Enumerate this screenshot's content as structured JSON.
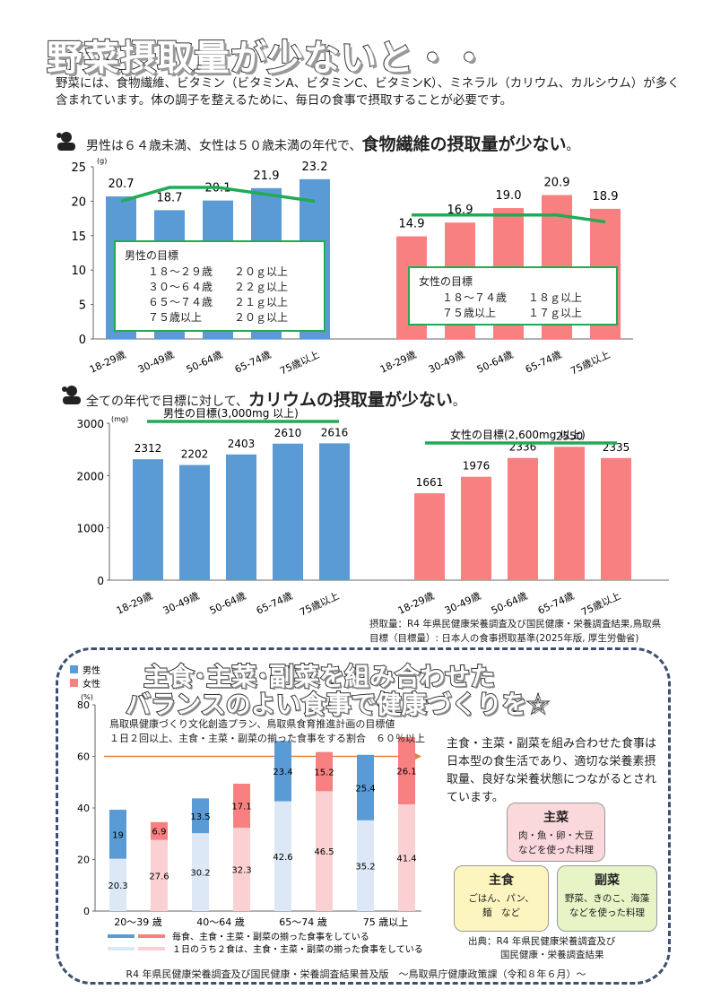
{
  "title": "野菜摂取量が少ないと・・",
  "intro": "野菜には、食物繊維、ビタミン（ビタミンA、ビタミンC、ビタミンK）、ミネラル（カリウム、カルシウム）が多く含まれています。体の調子を整えるために、毎日の食事で摂取することが必要です。",
  "section1": {
    "lead": "男性は６４歳未満、女性は５０歳未満の年代で、",
    "emph": "食物繊維の摂取量が少ない",
    "tail": "。",
    "male_goal_title": "男性の目標",
    "male_goal_lines": [
      [
        "１８～２９歳",
        "２０ｇ以上"
      ],
      [
        "３０～６４歳",
        "２２ｇ以上"
      ],
      [
        "６５～７４歳",
        "２１ｇ以上"
      ],
      [
        "７５歳以上",
        "２０ｇ以上"
      ]
    ],
    "female_goal_title": "女性の目標",
    "female_goal_lines": [
      [
        "１８～７４歳",
        "１８ｇ以上"
      ],
      [
        "７５歳以上",
        "１７ｇ以上"
      ]
    ]
  },
  "section2": {
    "lead": "全ての年代で目標に対して、",
    "emph": "カリウムの摂取量が少ない",
    "tail": "。",
    "male_goal": "男性の目標(3,000mg 以上)",
    "female_goal": "女性の目標(2,600mg 以上)",
    "source1": "摂取量：R4 年県民健康栄養調査及び国民健康・栄養調査結果,鳥取県",
    "source2": "目標（目標量）: 日本人の食事摂取基準(2025年版, 厚生労働省)"
  },
  "section3": {
    "title1": "主食･主菜･副菜を組み合わせた",
    "title2": "バランスのよい食事で健康づくりを☆",
    "plan1": "鳥取県健康づくり文化創造プラン、鳥取県食育推進計画の目標値",
    "plan2": "１日２回以上、主食・主菜・副菜の揃った食事をする割合　６０％以上",
    "note": "主食・主菜・副菜を組み合わせた食事は日本型の食生活であり、適切な栄養素摂取量、良好な栄養状態につながるとされています。",
    "shusai_title": "主菜",
    "shusai_desc1": "肉・魚・卵・大豆",
    "shusai_desc2": "などを使った料理",
    "shushoku_title": "主食",
    "shushoku_desc1": "ごはん、パン、",
    "shushoku_desc2": "麺　など",
    "fukusai_title": "副菜",
    "fukusai_desc1": "野菜、きのこ、海藻",
    "fukusai_desc2": "などを使った料理",
    "source1": "出典：R4 年県民健康栄養調査及び",
    "source2": "国民健康・栄養調査結果"
  },
  "footer": "R4 年県民健康栄養調査及び国民健康・栄養調査結果普及版　～鳥取県庁健康政策課（令和８年６月）～",
  "colors": {
    "male": "#5b9bd5",
    "female": "#f88080",
    "male_light": "#dce8f5",
    "female_light": "#fbd0d2",
    "goal_line": "#22aa55"
  },
  "chart_data": [
    {
      "type": "bar",
      "ylabel": "(g)",
      "ylim": [
        0,
        25
      ],
      "yticks": [
        0,
        5,
        10,
        15,
        20,
        25
      ],
      "categories": [
        "18-29歳",
        "30-49歳",
        "50-64歳",
        "65-74歳",
        "75歳以上"
      ],
      "series": [
        {
          "values": [
            20.7,
            18.7,
            20.1,
            21.9,
            23.2
          ],
          "goal": [
            20,
            22,
            22,
            21,
            20
          ]
        },
        {
          "values": [
            14.9,
            16.9,
            19.0,
            20.9,
            18.9
          ],
          "goal": [
            18,
            18,
            18,
            18,
            17
          ]
        }
      ],
      "labels_male": [
        "20.7",
        "18.7",
        "20.1",
        "21.9",
        "23.2"
      ],
      "labels_female": [
        "14.9",
        "16.9",
        "19.0",
        "20.9",
        "18.9"
      ]
    },
    {
      "type": "bar",
      "ylabel": "(mg)",
      "ylim": [
        0,
        3000
      ],
      "yticks": [
        0,
        1000,
        2000,
        3000
      ],
      "categories": [
        "18-29歳",
        "30-49歳",
        "50-64歳",
        "65-74歳",
        "75歳以上"
      ],
      "series": [
        {
          "values": [
            2312,
            2202,
            2403,
            2610,
            2616
          ],
          "goal": 3000
        },
        {
          "values": [
            1661,
            1976,
            2336,
            2550,
            2335
          ],
          "goal": 2600
        }
      ]
    },
    {
      "type": "bar",
      "stacked": true,
      "ylabel": "(%)",
      "ylim": [
        0,
        80
      ],
      "yticks": [
        0,
        20,
        40,
        60,
        80
      ],
      "categories": [
        "20～39 歳",
        "40～64 歳",
        "65～74 歳",
        "75 歳以上"
      ],
      "legend": [
        "男性",
        "女性"
      ],
      "legend_bottom": [
        "毎食、主食・主菜・副菜の揃った食事をしている",
        "１日のうち２食は、主食・主菜・副菜の揃った食事をしている"
      ],
      "target": 60,
      "series": [
        {
          "name": "男性",
          "two_meals": [
            20.3,
            30.2,
            42.6,
            35.2
          ],
          "every_meal": [
            19.0,
            13.5,
            23.4,
            25.4
          ]
        },
        {
          "name": "女性",
          "two_meals": [
            27.6,
            32.3,
            46.5,
            41.4
          ],
          "every_meal": [
            6.9,
            17.1,
            15.2,
            26.1
          ]
        }
      ]
    }
  ]
}
